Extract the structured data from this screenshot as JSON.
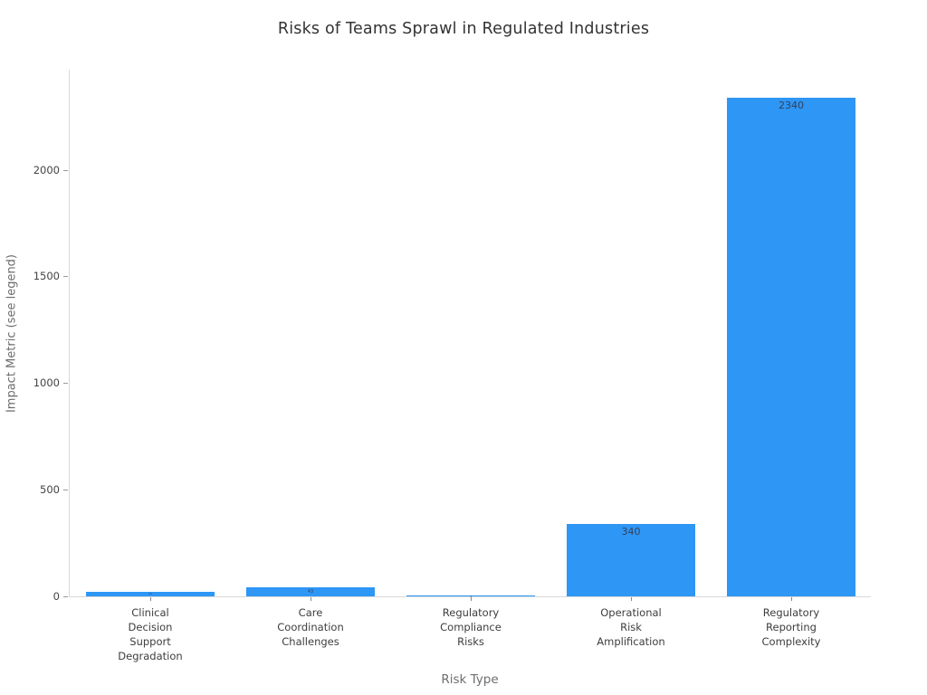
{
  "page": {
    "title": "Risks of Teams Sprawl in Regulated Industries"
  },
  "chart_data": {
    "type": "bar",
    "title": "Risks of Teams Sprawl in Regulated Industries",
    "xlabel": "Risk Type",
    "ylabel": "Impact Metric (see legend)",
    "categories": [
      "Clinical\nDecision\nSupport\nDegradation",
      "Care\nCoordination\nChallenges",
      "Regulatory\nCompliance\nRisks",
      "Operational\nRisk\nAmplification",
      "Regulatory\nReporting\nComplexity"
    ],
    "values": [
      23,
      43,
      4,
      340,
      2340
    ],
    "bar_labels": [
      "23",
      "43",
      "4",
      "340",
      "2340"
    ],
    "ytick_labels": [
      "0",
      "500",
      "1000",
      "1500",
      "2000"
    ],
    "ytick_values": [
      0,
      500,
      1000,
      1500,
      2000
    ],
    "ylim": [
      0,
      2470
    ],
    "grid": false,
    "legend": "none",
    "colors": {
      "bar": "#2e96f5",
      "title_text": "#333333",
      "axis_title_text": "#6e6e6e",
      "tick_text": "#444444",
      "category_text": "#3d3d3d",
      "bar_label_text": "#33425b",
      "axis_line": "#d9d9d9",
      "tick_mark": "#999999",
      "background": "#ffffff"
    }
  }
}
